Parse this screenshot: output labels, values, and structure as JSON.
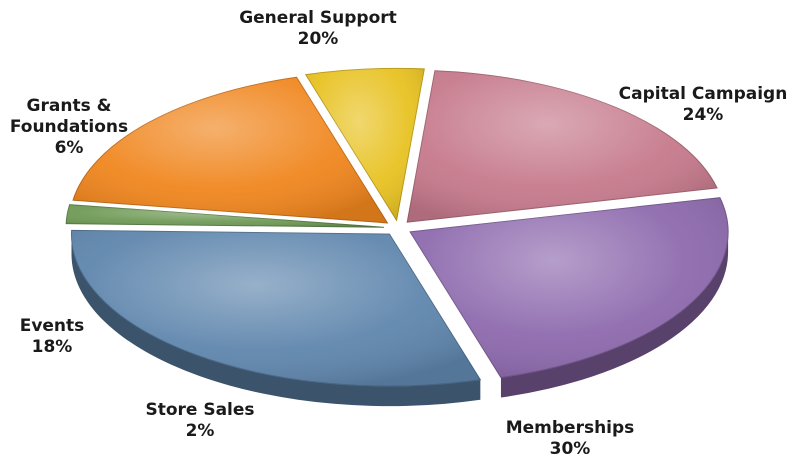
{
  "chart_data": {
    "type": "pie",
    "title": "",
    "slices": [
      {
        "label": "General Support",
        "value": 20,
        "value_text": "20%",
        "color": "#c67a8c"
      },
      {
        "label": "Capital Campaign",
        "value": 24,
        "value_text": "24%",
        "color": "#8e6aae"
      },
      {
        "label": "Memberships",
        "value": 30,
        "value_text": "30%",
        "color": "#5f86ad"
      },
      {
        "label": "Store Sales",
        "value": 2,
        "value_text": "2%",
        "color": "#6f9a56"
      },
      {
        "label": "Events",
        "value": 18,
        "value_text": "18%",
        "color": "#f0861e"
      },
      {
        "label": "Grants & Foundations",
        "value": 6,
        "value_text": "6%",
        "color": "#e8c222"
      }
    ],
    "style": "3d-exploded",
    "legend": "none"
  }
}
